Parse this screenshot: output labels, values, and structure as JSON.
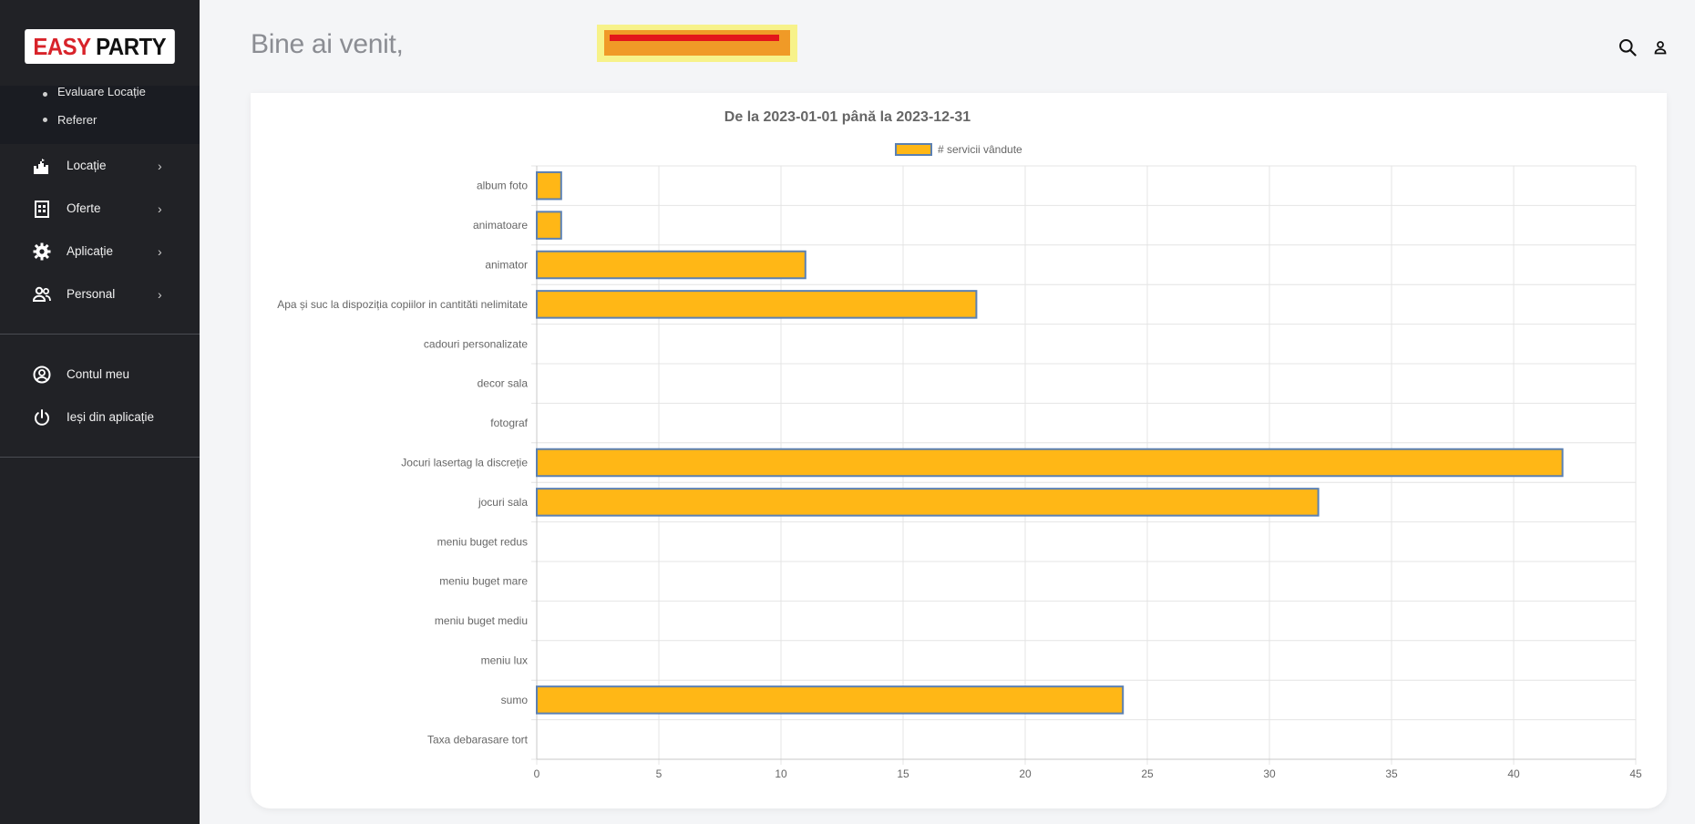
{
  "sidebar": {
    "logo": {
      "part1": "EASY",
      "part2": "PARTY"
    },
    "submenu": [
      "Evaluare Locație",
      "Referer"
    ],
    "nav": [
      {
        "label": "Locație",
        "icon": "castle-icon"
      },
      {
        "label": "Oferte",
        "icon": "building-icon"
      },
      {
        "label": "Aplicație",
        "icon": "gear-icon"
      },
      {
        "label": "Personal",
        "icon": "people-icon"
      }
    ],
    "account": [
      {
        "label": "Contul meu",
        "icon": "user-circle-icon"
      },
      {
        "label": "Ieși din aplicație",
        "icon": "power-icon"
      }
    ]
  },
  "header": {
    "welcome": "Bine ai venit,"
  },
  "chart_data": {
    "type": "bar",
    "orientation": "horizontal",
    "title": "De la 2023-01-01 până la  2023-12-31",
    "legend": {
      "position": "top"
    },
    "series": [
      {
        "name": "# servicii vândute",
        "color": "#ffb716",
        "border": "#5b80b2",
        "values": [
          1,
          1,
          11,
          18,
          0,
          0,
          0,
          42,
          32,
          0,
          0,
          0,
          0,
          24,
          0
        ]
      }
    ],
    "categories": [
      "album foto",
      "animatoare",
      "animator",
      "Apa și suc la dispoziția copiilor in cantităti nelimitate",
      "cadouri personalizate",
      "decor sala",
      "fotograf",
      "Jocuri lasertag la discreție",
      "jocuri sala",
      "meniu  buget redus",
      "meniu buget mare",
      "meniu buget mediu",
      "meniu lux",
      "sumo",
      "Taxa debarasare tort"
    ],
    "xlim": [
      0,
      45
    ],
    "xticks": [
      0,
      5,
      10,
      15,
      20,
      25,
      30,
      35,
      40,
      45
    ],
    "grid": true
  }
}
